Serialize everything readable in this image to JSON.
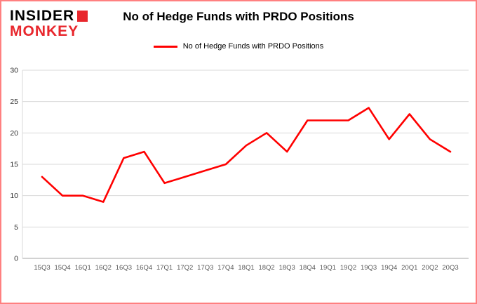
{
  "logo": {
    "line1": "INSIDER",
    "line2": "MONKEY"
  },
  "header": {
    "title": "No of Hedge Funds with PRDO Positions"
  },
  "legend": {
    "label": "No of Hedge Funds with PRDO Positions",
    "color": "#ff0000"
  },
  "colors": {
    "series_line": "#ff0000",
    "logo_red": "#e8262c",
    "frame_border": "#ff8080",
    "gridline": "#d9d9d9",
    "tick_label": "#595959"
  },
  "chart_data": {
    "type": "line",
    "title": "No of Hedge Funds with PRDO Positions",
    "categories": [
      "15Q3",
      "15Q4",
      "16Q1",
      "16Q2",
      "16Q3",
      "16Q4",
      "17Q1",
      "17Q2",
      "17Q3",
      "17Q4",
      "18Q1",
      "18Q2",
      "18Q3",
      "18Q4",
      "19Q1",
      "19Q2",
      "19Q3",
      "19Q4",
      "20Q1",
      "20Q2",
      "20Q3"
    ],
    "series": [
      {
        "name": "No of Hedge Funds with PRDO Positions",
        "color": "#ff0000",
        "values": [
          13,
          10,
          10,
          9,
          16,
          17,
          12,
          13,
          14,
          15,
          18,
          20,
          17,
          22,
          22,
          22,
          24,
          19,
          23,
          19,
          17
        ]
      }
    ],
    "xlabel": "",
    "ylabel": "",
    "ylim": [
      0,
      30
    ],
    "yticks": [
      0,
      5,
      10,
      15,
      20,
      25,
      30
    ],
    "grid": true,
    "legend_position": "top"
  }
}
